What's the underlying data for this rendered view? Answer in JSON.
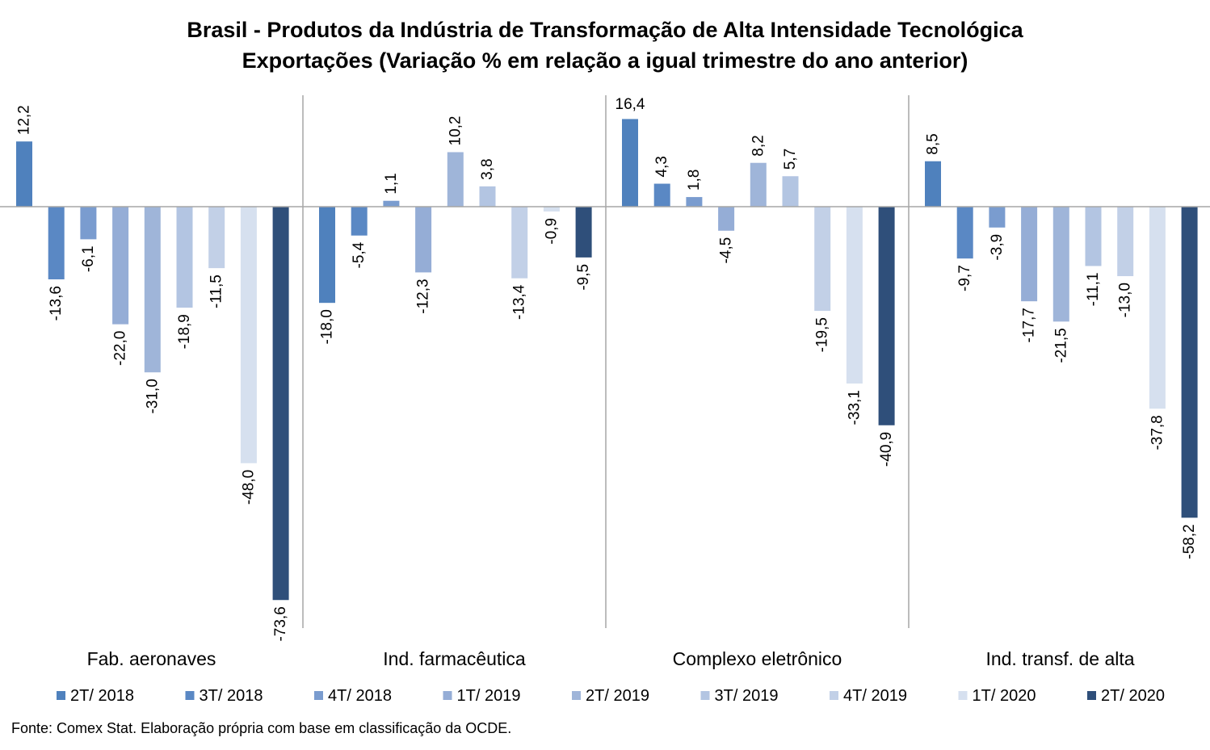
{
  "chart_data": {
    "type": "bar",
    "title": "Brasil - Produtos da Indústria de Transformação de Alta Intensidade Tecnológica",
    "subtitle": "Exportações (Variação % em relação a igual trimestre do ano anterior)",
    "xlabel": "",
    "ylabel": "",
    "ylim": [
      -73.6,
      16.4
    ],
    "grid": false,
    "legend_position": "bottom",
    "categories": [
      "Fab. aeronaves",
      "Ind. farmacêutica",
      "Complexo eletrônico",
      "Ind. transf. de alta"
    ],
    "series": [
      {
        "name": "2T/ 2018",
        "color": "#4f81bd",
        "values": [
          12.2,
          -18.0,
          16.4,
          8.5
        ],
        "labels": [
          "12,2",
          "-18,0",
          "16,4",
          "8,5"
        ]
      },
      {
        "name": "3T/ 2018",
        "color": "#5a88c4",
        "values": [
          -13.6,
          -5.4,
          4.3,
          -9.7
        ],
        "labels": [
          "-13,6",
          "-5,4",
          "4,3",
          "-9,7"
        ]
      },
      {
        "name": "4T/ 2018",
        "color": "#7a9ccf",
        "values": [
          -6.1,
          1.1,
          1.8,
          -3.9
        ],
        "labels": [
          "-6,1",
          "1,1",
          "1,8",
          "-3,9"
        ]
      },
      {
        "name": "1T/ 2019",
        "color": "#95add6",
        "values": [
          -22.0,
          -12.3,
          -4.5,
          -17.7
        ],
        "labels": [
          "-22,0",
          "-12,3",
          "-4,5",
          "-17,7"
        ]
      },
      {
        "name": "2T/ 2019",
        "color": "#9fb5d9",
        "values": [
          -31.0,
          10.2,
          8.2,
          -21.5
        ],
        "labels": [
          "-31,0",
          "10,2",
          "8,2",
          "-21,5"
        ]
      },
      {
        "name": "3T/ 2019",
        "color": "#b3c5e2",
        "values": [
          -18.9,
          3.8,
          5.7,
          -11.1
        ],
        "labels": [
          "-18,9",
          "3,8",
          "5,7",
          "-11,1"
        ]
      },
      {
        "name": "4T/ 2019",
        "color": "#c2d0e7",
        "values": [
          -11.5,
          -13.4,
          -19.5,
          -13.0
        ],
        "labels": [
          "-11,5",
          "-13,4",
          "-19,5",
          "-13,0"
        ]
      },
      {
        "name": "1T/ 2020",
        "color": "#d6e0ef",
        "values": [
          -48.0,
          -0.9,
          -33.1,
          -37.8
        ],
        "labels": [
          "-48,0",
          "-0,9",
          "-33,1",
          "-37,8"
        ]
      },
      {
        "name": "2T/ 2020",
        "color": "#2f4f7a",
        "values": [
          -73.6,
          -9.5,
          -40.9,
          -58.2
        ],
        "labels": [
          "-73,6",
          "-9,5",
          "-40,9",
          "-58,2"
        ]
      }
    ]
  },
  "footer": {
    "source": "Fonte: Comex Stat. Elaboração própria com base em classificação da OCDE."
  }
}
